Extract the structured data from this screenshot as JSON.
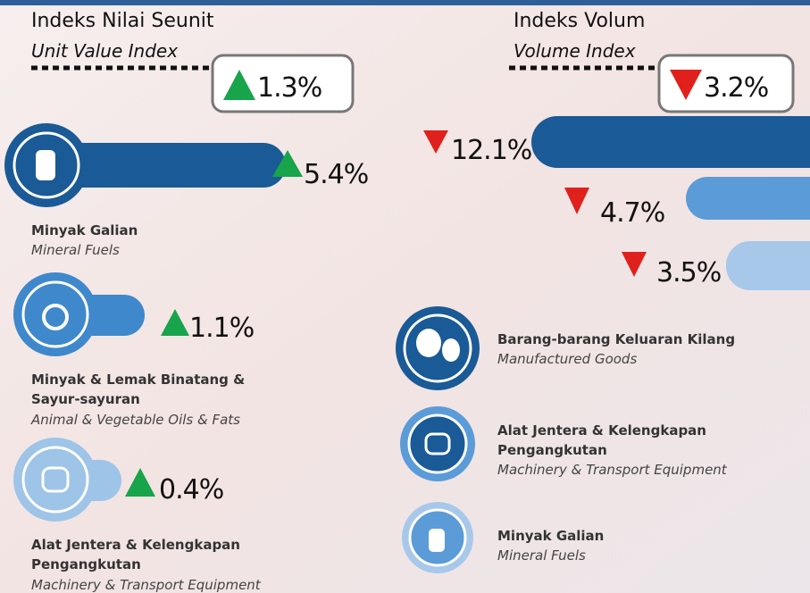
{
  "left": {
    "title": "Indeks Nilai Seunit",
    "subtitle": "Unit Value Index",
    "total": "1.3%",
    "items": [
      {
        "value": "5.4%",
        "label": [
          "Minyak Galian"
        ],
        "english": "Mineral Fuels"
      },
      {
        "value": "1.1%",
        "label": [
          "Minyak & Lemak Binatang &",
          "Sayur-sayuran"
        ],
        "english": "Animal & Vegetable Oils & Fats"
      },
      {
        "value": "0.4%",
        "label": [
          "Alat Jentera & Kelengkapan",
          "Pengangkutan"
        ],
        "english": "Machinery & Transport Equipment"
      }
    ]
  },
  "right": {
    "title": "Indeks Volum",
    "subtitle": "Volume Index",
    "total": "3.2%",
    "items": [
      {
        "value": "12.1%",
        "label": [
          "Barang-barang Keluaran Kilang"
        ],
        "english": "Manufactured Goods"
      },
      {
        "value": "4.7%",
        "label": [
          "Alat Jentera & Kelengkapan",
          "Pengangkutan"
        ],
        "english": "Machinery & Transport Equipment"
      },
      {
        "value": "3.5%",
        "label": [
          "Minyak Galian"
        ],
        "english": "Mineral Fuels"
      }
    ]
  }
}
